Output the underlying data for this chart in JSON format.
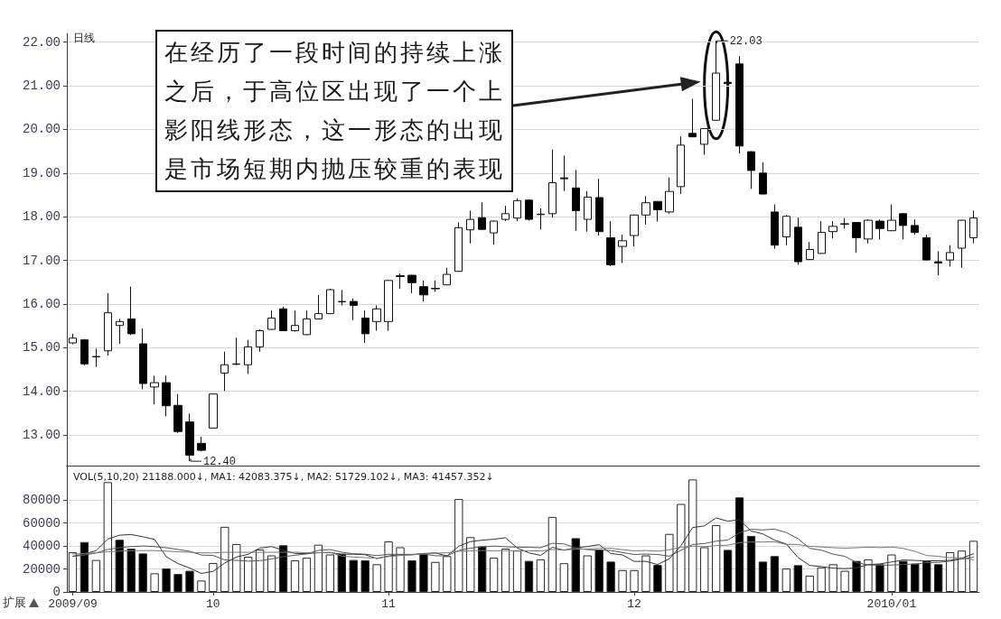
{
  "chart_data": [
    {
      "type": "candlestick",
      "title": "日线",
      "categories": [
        "2009/09",
        null,
        null,
        null,
        null,
        null,
        null,
        null,
        null,
        null,
        null,
        null,
        "10",
        null,
        null,
        null,
        null,
        null,
        null,
        null,
        null,
        null,
        null,
        null,
        null,
        null,
        null,
        "11",
        null,
        null,
        null,
        null,
        null,
        null,
        null,
        null,
        null,
        null,
        null,
        null,
        null,
        null,
        null,
        null,
        null,
        null,
        null,
        null,
        "12",
        null,
        null,
        null,
        null,
        null,
        null,
        null,
        null,
        null,
        null,
        null,
        null,
        null,
        null,
        null,
        null,
        null,
        null,
        null,
        null,
        null,
        "2010/01",
        null,
        null,
        null,
        null,
        null,
        null,
        null
      ],
      "ohlc": [
        [
          15.11,
          15.32,
          15.08,
          15.22
        ],
        [
          15.18,
          15.2,
          14.6,
          14.63
        ],
        [
          14.79,
          14.98,
          14.56,
          14.8
        ],
        [
          14.93,
          16.25,
          14.82,
          15.8
        ],
        [
          15.51,
          15.66,
          15.09,
          15.6
        ],
        [
          15.66,
          16.4,
          15.29,
          15.32
        ],
        [
          15.09,
          15.44,
          14.05,
          14.18
        ],
        [
          14.1,
          14.36,
          13.7,
          14.2
        ],
        [
          14.2,
          14.36,
          13.43,
          13.67
        ],
        [
          13.68,
          13.94,
          13.05,
          13.08
        ],
        [
          13.3,
          13.49,
          12.4,
          12.54
        ],
        [
          12.81,
          12.96,
          12.63,
          12.65
        ],
        [
          13.16,
          13.95,
          13.15,
          13.94
        ],
        [
          14.42,
          14.91,
          14.01,
          14.61
        ],
        [
          14.62,
          15.23,
          14.6,
          14.63
        ],
        [
          14.61,
          15.18,
          14.4,
          15.02
        ],
        [
          15.02,
          15.42,
          14.91,
          15.39
        ],
        [
          15.42,
          15.85,
          15.41,
          15.68
        ],
        [
          15.89,
          15.94,
          15.38,
          15.39
        ],
        [
          15.39,
          15.85,
          15.37,
          15.51
        ],
        [
          15.3,
          15.85,
          15.29,
          15.66
        ],
        [
          15.66,
          16.21,
          15.65,
          15.78
        ],
        [
          15.78,
          16.35,
          15.77,
          16.33
        ],
        [
          16.05,
          16.32,
          15.97,
          16.06
        ],
        [
          16.06,
          16.13,
          15.63,
          15.97
        ],
        [
          15.68,
          15.85,
          15.11,
          15.32
        ],
        [
          15.6,
          15.97,
          15.39,
          15.89
        ],
        [
          15.6,
          16.55,
          15.39,
          16.54
        ],
        [
          16.63,
          16.7,
          16.35,
          16.65
        ],
        [
          16.66,
          16.67,
          16.25,
          16.49
        ],
        [
          16.4,
          16.54,
          16.06,
          16.21
        ],
        [
          16.36,
          16.54,
          16.28,
          16.35
        ],
        [
          16.44,
          16.83,
          16.43,
          16.68
        ],
        [
          16.75,
          17.87,
          16.74,
          17.75
        ],
        [
          17.7,
          18.14,
          17.39,
          17.94
        ],
        [
          17.98,
          18.33,
          17.7,
          17.71
        ],
        [
          17.63,
          17.91,
          17.36,
          17.9
        ],
        [
          17.94,
          18.25,
          17.9,
          18.07
        ],
        [
          17.97,
          18.42,
          17.9,
          18.37
        ],
        [
          18.38,
          18.4,
          17.91,
          17.94
        ],
        [
          18.05,
          18.19,
          17.71,
          18.06
        ],
        [
          18.07,
          19.54,
          17.98,
          18.78
        ],
        [
          18.89,
          19.4,
          18.59,
          18.87
        ],
        [
          18.66,
          19.07,
          17.68,
          18.14
        ],
        [
          17.94,
          18.59,
          17.66,
          18.45
        ],
        [
          18.44,
          18.87,
          17.57,
          17.66
        ],
        [
          17.52,
          17.9,
          16.87,
          16.9
        ],
        [
          17.32,
          17.59,
          16.94,
          17.45
        ],
        [
          17.57,
          18.05,
          17.32,
          18.04
        ],
        [
          18.04,
          18.47,
          17.82,
          18.32
        ],
        [
          18.35,
          18.36,
          17.89,
          18.16
        ],
        [
          18.11,
          18.9,
          18.07,
          18.58
        ],
        [
          18.69,
          19.84,
          18.52,
          19.64
        ],
        [
          19.91,
          20.7,
          19.82,
          19.83
        ],
        [
          19.66,
          20.03,
          19.42,
          20.02
        ],
        [
          20.21,
          22.03,
          20.2,
          21.29
        ],
        [
          21.08,
          21.1,
          21.03,
          21.05
        ],
        [
          21.5,
          21.68,
          19.45,
          19.62
        ],
        [
          19.49,
          19.5,
          18.64,
          19.06
        ],
        [
          19.0,
          19.25,
          18.51,
          18.52
        ],
        [
          18.11,
          18.28,
          17.27,
          17.35
        ],
        [
          17.54,
          18.04,
          17.35,
          18.01
        ],
        [
          17.76,
          17.98,
          16.9,
          16.97
        ],
        [
          17.02,
          17.42,
          17.01,
          17.25
        ],
        [
          17.16,
          17.9,
          17.15,
          17.64
        ],
        [
          17.66,
          17.9,
          17.5,
          17.78
        ],
        [
          17.83,
          17.97,
          17.73,
          17.84
        ],
        [
          17.87,
          17.88,
          17.18,
          17.52
        ],
        [
          17.49,
          17.94,
          17.39,
          17.92
        ],
        [
          17.9,
          17.94,
          17.48,
          17.73
        ],
        [
          17.68,
          18.28,
          17.67,
          17.92
        ],
        [
          18.07,
          18.08,
          17.48,
          17.8
        ],
        [
          17.8,
          17.94,
          17.59,
          17.64
        ],
        [
          17.52,
          17.59,
          17.0,
          17.01
        ],
        [
          16.97,
          17.21,
          16.66,
          16.94
        ],
        [
          17.01,
          17.35,
          16.86,
          17.18
        ],
        [
          17.28,
          17.93,
          16.83,
          17.92
        ],
        [
          17.52,
          18.14,
          17.39,
          17.97
        ]
      ],
      "colors": [
        "#ffffff",
        "#000000",
        "#ffffff",
        "#ffffff",
        "#ffffff",
        "#000000",
        "#000000",
        "#ffffff",
        "#000000",
        "#000000",
        "#000000",
        "#000000",
        "#ffffff",
        "#ffffff",
        "#ffffff",
        "#ffffff",
        "#ffffff",
        "#ffffff",
        "#000000",
        "#ffffff",
        "#ffffff",
        "#ffffff",
        "#ffffff",
        "#ffffff",
        "#000000",
        "#000000",
        "#ffffff",
        "#ffffff",
        "#ffffff",
        "#000000",
        "#000000",
        "#000000",
        "#ffffff",
        "#ffffff",
        "#ffffff",
        "#000000",
        "#ffffff",
        "#ffffff",
        "#ffffff",
        "#000000",
        "#ffffff",
        "#ffffff",
        "#000000",
        "#000000",
        "#ffffff",
        "#000000",
        "#000000",
        "#ffffff",
        "#ffffff",
        "#ffffff",
        "#000000",
        "#ffffff",
        "#ffffff",
        "#000000",
        "#ffffff",
        "#ffffff",
        "#000000",
        "#000000",
        "#000000",
        "#000000",
        "#000000",
        "#ffffff",
        "#000000",
        "#ffffff",
        "#ffffff",
        "#ffffff",
        "#ffffff",
        "#000000",
        "#ffffff",
        "#000000",
        "#ffffff",
        "#000000",
        "#000000",
        "#000000",
        "#000000",
        "#ffffff",
        "#ffffff",
        "#ffffff"
      ],
      "ylim": [
        12.3,
        22.2
      ],
      "yticks": [
        {
          "value": 13,
          "label": "13.00"
        },
        {
          "value": 14,
          "label": "14.00"
        },
        {
          "value": 15,
          "label": "15.00"
        },
        {
          "value": 16,
          "label": "16.00"
        },
        {
          "value": 17,
          "label": "17.00"
        },
        {
          "value": 18,
          "label": "18.00"
        },
        {
          "value": 19,
          "label": "19.00"
        },
        {
          "value": 20,
          "label": "20.00"
        },
        {
          "value": 21,
          "label": "21.00"
        },
        {
          "value": 22,
          "label": "22.00"
        }
      ],
      "grid": "y",
      "tick_labels": "y",
      "annotations": [
        "在经历了一段时间的持续上涨之后，于高位区出现了一个上影阳线形态，这一形态的出现是市场短期内抛压较重的表现",
        "22.03",
        "12.40"
      ]
    },
    {
      "type": "bar",
      "title": "VOL(5,10,20) 21188.000↓, MA1: 42083.375↓, MA2: 51729.102↓, MA3: 41457.352↓",
      "categories": [
        "2009/09",
        null,
        null,
        null,
        null,
        null,
        null,
        null,
        null,
        null,
        null,
        null,
        "10",
        null,
        null,
        null,
        null,
        null,
        null,
        null,
        null,
        null,
        null,
        null,
        null,
        null,
        null,
        "11",
        null,
        null,
        null,
        null,
        null,
        null,
        null,
        null,
        null,
        null,
        null,
        null,
        null,
        null,
        null,
        null,
        null,
        null,
        null,
        null,
        "12",
        null,
        null,
        null,
        null,
        null,
        null,
        null,
        null,
        null,
        null,
        null,
        null,
        null,
        null,
        null,
        null,
        null,
        null,
        null,
        null,
        null,
        "2010/01",
        null,
        null,
        null,
        null,
        null,
        null,
        null
      ],
      "series": [
        {
          "colors": [
            "#ffffff",
            "#000000",
            "#ffffff",
            "#ffffff",
            "#000000",
            "#000000",
            "#000000",
            "#ffffff",
            "#000000",
            "#000000",
            "#000000",
            "#ffffff",
            "#ffffff",
            "#ffffff",
            "#ffffff",
            "#ffffff",
            "#ffffff",
            "#ffffff",
            "#000000",
            "#ffffff",
            "#ffffff",
            "#ffffff",
            "#ffffff",
            "#000000",
            "#000000",
            "#000000",
            "#ffffff",
            "#ffffff",
            "#ffffff",
            "#000000",
            "#000000",
            "#ffffff",
            "#ffffff",
            "#ffffff",
            "#ffffff",
            "#000000",
            "#ffffff",
            "#ffffff",
            "#ffffff",
            "#000000",
            "#ffffff",
            "#ffffff",
            "#ffffff",
            "#000000",
            "#ffffff",
            "#000000",
            "#000000",
            "#ffffff",
            "#ffffff",
            "#ffffff",
            "#000000",
            "#ffffff",
            "#ffffff",
            "#ffffff",
            "#ffffff",
            "#ffffff",
            "#000000",
            "#000000",
            "#000000",
            "#000000",
            "#000000",
            "#ffffff",
            "#000000",
            "#ffffff",
            "#ffffff",
            "#ffffff",
            "#ffffff",
            "#000000",
            "#ffffff",
            "#000000",
            "#ffffff",
            "#000000",
            "#000000",
            "#000000",
            "#000000",
            "#ffffff",
            "#ffffff",
            "#ffffff"
          ],
          "values": [
            34600,
            43400,
            27800,
            95600,
            45400,
            37700,
            33500,
            16200,
            20400,
            15600,
            18400,
            9900,
            25200,
            56700,
            41700,
            30600,
            36900,
            31800,
            40600,
            27500,
            29800,
            41100,
            32600,
            33200,
            27800,
            27500,
            24100,
            44000,
            38900,
            27500,
            33200,
            26100,
            31200,
            80900,
            47700,
            39700,
            29800,
            37700,
            36000,
            27000,
            28400,
            65300,
            25000,
            46800,
            31800,
            36900,
            26400,
            19000,
            19000,
            31800,
            23500,
            50500,
            76600,
            97900,
            38900,
            58200,
            36600,
            82300,
            48800,
            26400,
            31200,
            20400,
            23300,
            14200,
            21300,
            24100,
            18400,
            27000,
            28400,
            24100,
            32600,
            27000,
            24700,
            27000,
            24100,
            34600,
            36000,
            44500
          ]
        },
        {
          "type": "line",
          "color": "#333333",
          "values": [
            31000,
            33000,
            36000,
            46000,
            49400,
            50000,
            48000,
            45700,
            30600,
            24700,
            20800,
            16100,
            17900,
            25200,
            30400,
            32800,
            38200,
            39500,
            36300,
            33500,
            33300,
            34200,
            34300,
            32800,
            32900,
            32400,
            29000,
            31300,
            32500,
            32400,
            33500,
            33900,
            31400,
            39800,
            43800,
            45100,
            45900,
            47200,
            38200,
            34000,
            31800,
            38900,
            36300,
            38500,
            39500,
            41200,
            33400,
            32200,
            26600,
            26600,
            23900,
            28800,
            40300,
            56100,
            57500,
            64400,
            61600,
            62800,
            53000,
            50500,
            45100,
            41800,
            30000,
            23100,
            22100,
            20700,
            20300,
            21000,
            23800,
            24400,
            26100,
            27800,
            27400,
            27100,
            27100,
            27500,
            29300,
            33200
          ]
        },
        {
          "type": "line",
          "color": "#555555",
          "values": [
            31000,
            32000,
            34000,
            37000,
            38500,
            39500,
            40000,
            39500,
            38500,
            37000,
            35400,
            32100,
            31800,
            27900,
            27500,
            26800,
            27200,
            28700,
            30700,
            31900,
            33100,
            36200,
            36900,
            34600,
            33200,
            32900,
            31600,
            32800,
            32700,
            32700,
            33000,
            31500,
            31400,
            36100,
            38100,
            39300,
            39900,
            39300,
            39000,
            38900,
            38500,
            42400,
            41800,
            38300,
            36800,
            36500,
            36100,
            34300,
            32600,
            33000,
            32600,
            31100,
            36200,
            41300,
            42100,
            44200,
            45200,
            51500,
            54500,
            54000,
            54700,
            51700,
            46400,
            38000,
            36300,
            32900,
            31000,
            25500,
            23500,
            23200,
            23400,
            24000,
            24200,
            25500,
            25700,
            26800,
            28600,
            30300
          ]
        },
        {
          "type": "line",
          "color": "#777777",
          "values": [
            33000,
            33500,
            34000,
            35000,
            35500,
            36000,
            36000,
            36000,
            35500,
            35000,
            34500,
            34000,
            34000,
            34500,
            34500,
            34500,
            34500,
            34500,
            34500,
            34500,
            34200,
            34100,
            34400,
            31200,
            30400,
            29900,
            29400,
            30800,
            31700,
            32300,
            33000,
            33800,
            34100,
            35400,
            35700,
            36100,
            35800,
            36000,
            35800,
            35800,
            35700,
            36900,
            36600,
            37200,
            37400,
            37900,
            38000,
            36800,
            35800,
            36000,
            35500,
            36700,
            39000,
            39800,
            39400,
            40300,
            40700,
            42900,
            43500,
            43500,
            43600,
            41400,
            41300,
            39700,
            39200,
            38500,
            38100,
            38500,
            39000,
            38600,
            39100,
            37900,
            35300,
            31700,
            31000,
            29800,
            29800,
            27900
          ]
        }
      ],
      "ylim": [
        0,
        110000
      ],
      "yticks": [
        0,
        20000,
        40000,
        60000,
        80000
      ],
      "grid": "y",
      "marker": "none",
      "annotations": [
        "扩展"
      ]
    }
  ]
}
